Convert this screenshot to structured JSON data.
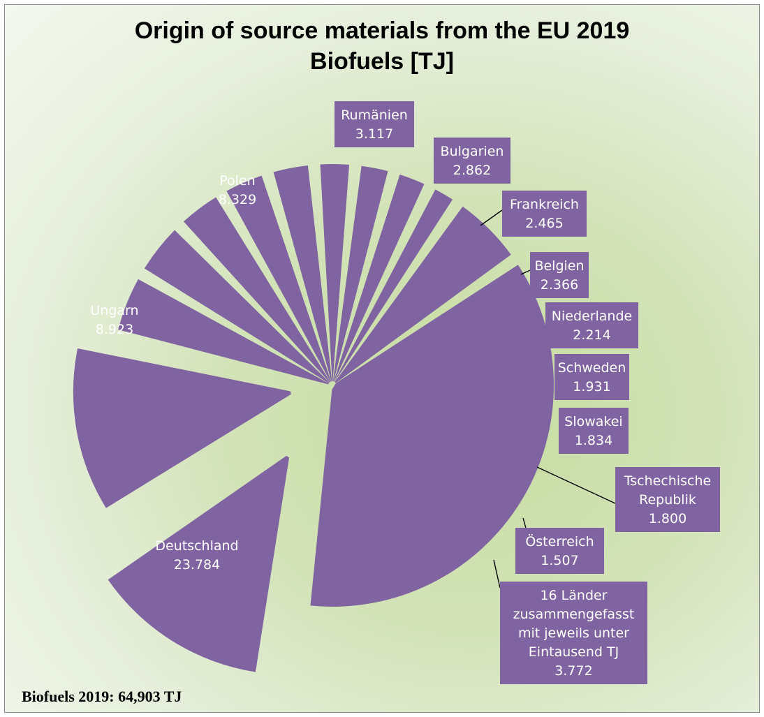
{
  "chart_data": {
    "type": "pie",
    "title": "Origin of source materials from the EU 2019",
    "subtitle": "Biofuels [TJ]",
    "color": "#8064a2",
    "slices": [
      {
        "label": "Rumänien",
        "value_label": "3.117",
        "value": 3117
      },
      {
        "label": "Bulgarien",
        "value_label": "2.862",
        "value": 2862
      },
      {
        "label": "Frankreich",
        "value_label": "2.465",
        "value": 2465
      },
      {
        "label": "Belgien",
        "value_label": "2.366",
        "value": 2366
      },
      {
        "label": "Niederlande",
        "value_label": "2.214",
        "value": 2214
      },
      {
        "label": "Schweden",
        "value_label": "1.931",
        "value": 1931
      },
      {
        "label": "Slowakei",
        "value_label": "1.834",
        "value": 1834
      },
      {
        "label": "Tschechische Republik",
        "value_label": "1.800",
        "value": 1800
      },
      {
        "label": "Österreich",
        "value_label": "1.507",
        "value": 1507
      },
      {
        "label": "16 Länder zusammengefasst mit jeweils unter Eintausend TJ",
        "value_label": "3.772",
        "value": 3772
      },
      {
        "label": "Deutschland",
        "value_label": "23.784",
        "value": 23784
      },
      {
        "label": "Ungarn",
        "value_label": "8.923",
        "value": 8923
      },
      {
        "label": "Polen",
        "value_label": "8.329",
        "value": 8329
      }
    ]
  },
  "footer": "Biofuels 2019: 64,903 TJ"
}
